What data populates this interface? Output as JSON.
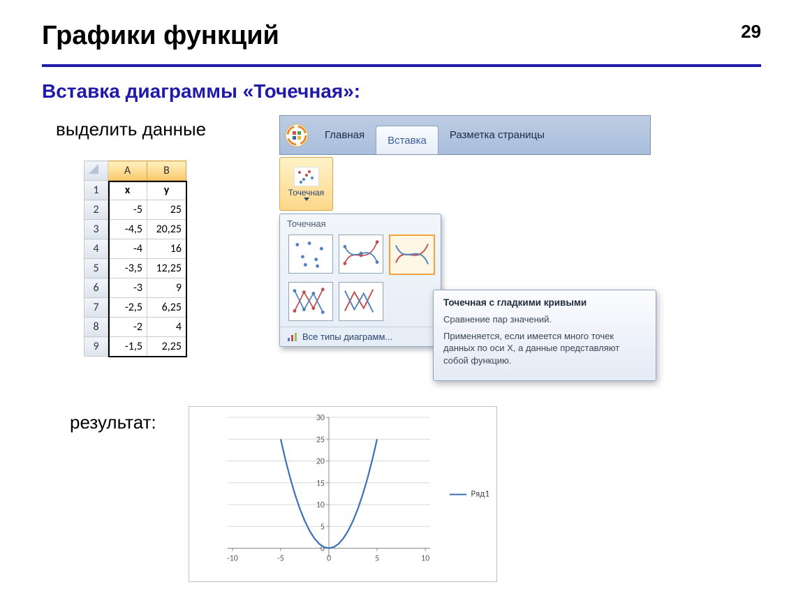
{
  "page_number": "29",
  "title": "Графики функций",
  "subtitle": "Вставка диаграммы «Точечная»:",
  "step_select_data": "выделить данные",
  "result_label": "результат:",
  "colors": {
    "accent": "#1f1aa8",
    "series": "#3d6fb6",
    "grid": "#d8d8d8",
    "axis": "#888888"
  },
  "excel": {
    "columns": [
      "A",
      "B"
    ],
    "headers": [
      "x",
      "y"
    ],
    "rows": [
      {
        "n": "2",
        "x": "-5",
        "y": "25"
      },
      {
        "n": "3",
        "x": "-4,5",
        "y": "20,25"
      },
      {
        "n": "4",
        "x": "-4",
        "y": "16"
      },
      {
        "n": "5",
        "x": "-3,5",
        "y": "12,25"
      },
      {
        "n": "6",
        "x": "-3",
        "y": "9"
      },
      {
        "n": "7",
        "x": "-2,5",
        "y": "6,25"
      },
      {
        "n": "8",
        "x": "-2",
        "y": "4"
      },
      {
        "n": "9",
        "x": "-1,5",
        "y": "2,25"
      }
    ]
  },
  "ribbon": {
    "tabs": [
      {
        "label": "Главная",
        "active": false
      },
      {
        "label": "Вставка",
        "active": true
      },
      {
        "label": "Разметка страницы",
        "active": false
      }
    ],
    "scatter_button_label": "Точечная",
    "gallery_header": "Точечная",
    "gallery_items": [
      {
        "type": "scatter-markers",
        "selected": false
      },
      {
        "type": "scatter-smooth-markers",
        "selected": false
      },
      {
        "type": "scatter-smooth",
        "selected": true
      },
      {
        "type": "scatter-straight-markers",
        "selected": false
      },
      {
        "type": "scatter-straight",
        "selected": false
      }
    ],
    "all_types_label": "Все типы диаграмм...",
    "tooltip": {
      "title": "Точечная с гладкими кривыми",
      "line1": "Сравнение пар значений.",
      "line2": "Применяется, если имеется много точек данных по оси X, а данные представляют собой функцию."
    }
  },
  "chart": {
    "type": "scatter-smooth",
    "legend_label": "Ряд1",
    "x": [
      -5,
      -4.5,
      -4,
      -3.5,
      -3,
      -2.5,
      -2,
      -1.5,
      -1,
      -0.5,
      0,
      0.5,
      1,
      1.5,
      2,
      2.5,
      3,
      3.5,
      4,
      4.5,
      5
    ],
    "y": [
      25,
      20.25,
      16,
      12.25,
      9,
      6.25,
      4,
      2.25,
      1,
      0.25,
      0,
      0.25,
      1,
      2.25,
      4,
      6.25,
      9,
      12.25,
      16,
      20.25,
      25
    ],
    "x_ticks": [
      -10,
      -5,
      0,
      5,
      10
    ],
    "y_ticks": [
      0,
      5,
      10,
      15,
      20,
      25,
      30
    ],
    "xlim": [
      -10.5,
      10.5
    ],
    "ylim": [
      -2,
      30
    ],
    "line_color": "#3d6fb6",
    "line_width": 2.2,
    "grid_color": "#d8d8d8",
    "axis_color": "#888888",
    "background": "#ffffff",
    "tick_fontsize": 12
  }
}
